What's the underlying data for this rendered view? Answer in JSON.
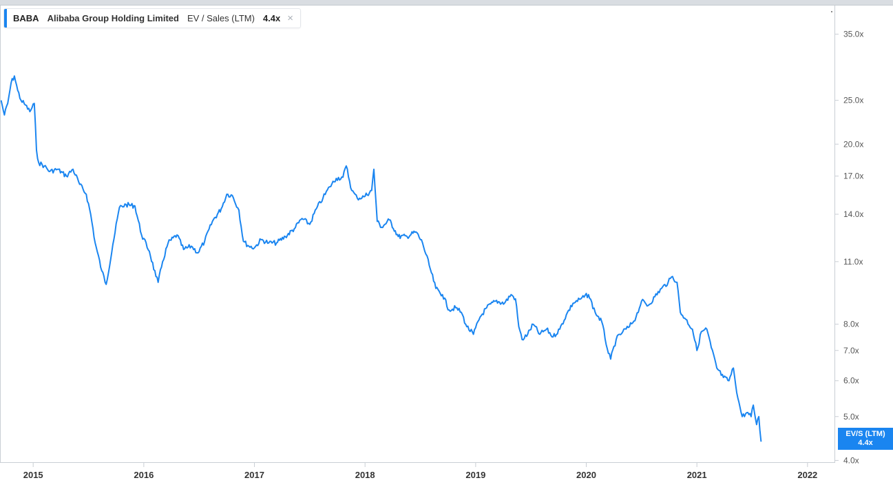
{
  "legend": {
    "ticker": "BABA",
    "company": "Alibaba Group Holding Limited",
    "metric": "EV / Sales (LTM)",
    "last_value": "4.4x",
    "close_icon": "×"
  },
  "value_box": {
    "label": "EV/S (LTM)",
    "value": "4.4x"
  },
  "colors": {
    "series": "#1a85f0",
    "axis": "#c9ced4"
  },
  "chart_data": {
    "type": "line",
    "title": "",
    "xlabel": "",
    "ylabel": "",
    "y_scale": "log",
    "ylim": [
      3.95,
      40.5
    ],
    "x_range": [
      2014.7,
      2022.25
    ],
    "y_ticks": [
      {
        "value": 35,
        "label": "35.0x"
      },
      {
        "value": 25,
        "label": "25.0x"
      },
      {
        "value": 20,
        "label": "20.0x"
      },
      {
        "value": 17,
        "label": "17.0x"
      },
      {
        "value": 14,
        "label": "14.0x"
      },
      {
        "value": 11,
        "label": "11.0x"
      },
      {
        "value": 8,
        "label": "8.0x"
      },
      {
        "value": 7,
        "label": "7.0x"
      },
      {
        "value": 6,
        "label": "6.0x"
      },
      {
        "value": 5,
        "label": "5.0x"
      },
      {
        "value": 4,
        "label": "4.0x"
      }
    ],
    "x_ticks": [
      {
        "value": 2015,
        "label": "2015"
      },
      {
        "value": 2016,
        "label": "2016"
      },
      {
        "value": 2017,
        "label": "2017"
      },
      {
        "value": 2018,
        "label": "2018"
      },
      {
        "value": 2019,
        "label": "2019"
      },
      {
        "value": 2020,
        "label": "2020"
      },
      {
        "value": 2021,
        "label": "2021"
      },
      {
        "value": 2022,
        "label": "2022"
      }
    ],
    "grid": false,
    "legend_position": "top-left",
    "series": [
      {
        "name": "EV / Sales (LTM)",
        "points": [
          [
            2014.71,
            25.0
          ],
          [
            2014.74,
            23.2
          ],
          [
            2014.77,
            24.6
          ],
          [
            2014.8,
            27.3
          ],
          [
            2014.83,
            28.3
          ],
          [
            2014.86,
            26.3
          ],
          [
            2014.89,
            25.0
          ],
          [
            2014.93,
            24.4
          ],
          [
            2014.97,
            23.6
          ],
          [
            2015.01,
            24.6
          ],
          [
            2015.03,
            19.4
          ],
          [
            2015.05,
            18.2
          ],
          [
            2015.1,
            17.9
          ],
          [
            2015.15,
            17.4
          ],
          [
            2015.22,
            17.6
          ],
          [
            2015.3,
            17.0
          ],
          [
            2015.36,
            17.6
          ],
          [
            2015.42,
            16.3
          ],
          [
            2015.48,
            15.5
          ],
          [
            2015.52,
            14.0
          ],
          [
            2015.56,
            12.1
          ],
          [
            2015.62,
            10.5
          ],
          [
            2015.66,
            9.8
          ],
          [
            2015.72,
            12.0
          ],
          [
            2015.78,
            14.5
          ],
          [
            2015.84,
            14.7
          ],
          [
            2015.92,
            14.6
          ],
          [
            2015.98,
            12.6
          ],
          [
            2016.05,
            11.6
          ],
          [
            2016.11,
            10.2
          ],
          [
            2016.13,
            9.9
          ],
          [
            2016.17,
            11.0
          ],
          [
            2016.22,
            12.1
          ],
          [
            2016.3,
            12.6
          ],
          [
            2016.36,
            11.7
          ],
          [
            2016.43,
            11.9
          ],
          [
            2016.49,
            11.5
          ],
          [
            2016.55,
            12.2
          ],
          [
            2016.62,
            13.5
          ],
          [
            2016.7,
            14.4
          ],
          [
            2016.75,
            15.5
          ],
          [
            2016.8,
            15.4
          ],
          [
            2016.86,
            14.3
          ],
          [
            2016.9,
            12.2
          ],
          [
            2016.95,
            11.9
          ],
          [
            2017.0,
            11.8
          ],
          [
            2017.06,
            12.3
          ],
          [
            2017.13,
            12.1
          ],
          [
            2017.2,
            12.1
          ],
          [
            2017.28,
            12.5
          ],
          [
            2017.36,
            13.0
          ],
          [
            2017.43,
            13.7
          ],
          [
            2017.5,
            13.3
          ],
          [
            2017.56,
            14.4
          ],
          [
            2017.62,
            15.2
          ],
          [
            2017.68,
            16.1
          ],
          [
            2017.74,
            16.8
          ],
          [
            2017.8,
            16.9
          ],
          [
            2017.83,
            17.9
          ],
          [
            2017.88,
            15.8
          ],
          [
            2017.93,
            15.2
          ],
          [
            2017.99,
            15.3
          ],
          [
            2018.06,
            15.8
          ],
          [
            2018.08,
            17.6
          ],
          [
            2018.11,
            13.5
          ],
          [
            2018.15,
            13.1
          ],
          [
            2018.22,
            13.6
          ],
          [
            2018.3,
            12.5
          ],
          [
            2018.38,
            12.5
          ],
          [
            2018.46,
            12.8
          ],
          [
            2018.52,
            12.1
          ],
          [
            2018.58,
            10.8
          ],
          [
            2018.64,
            9.6
          ],
          [
            2018.7,
            9.3
          ],
          [
            2018.76,
            8.6
          ],
          [
            2018.82,
            8.7
          ],
          [
            2018.87,
            8.5
          ],
          [
            2018.92,
            7.9
          ],
          [
            2018.98,
            7.6
          ],
          [
            2019.04,
            8.3
          ],
          [
            2019.1,
            8.7
          ],
          [
            2019.18,
            9.0
          ],
          [
            2019.26,
            8.9
          ],
          [
            2019.32,
            9.3
          ],
          [
            2019.36,
            9.1
          ],
          [
            2019.39,
            7.9
          ],
          [
            2019.42,
            7.4
          ],
          [
            2019.47,
            7.6
          ],
          [
            2019.52,
            8.0
          ],
          [
            2019.58,
            7.6
          ],
          [
            2019.64,
            7.8
          ],
          [
            2019.7,
            7.5
          ],
          [
            2019.76,
            7.8
          ],
          [
            2019.82,
            8.4
          ],
          [
            2019.88,
            8.9
          ],
          [
            2019.95,
            9.1
          ],
          [
            2020.02,
            9.3
          ],
          [
            2020.08,
            8.5
          ],
          [
            2020.14,
            8.1
          ],
          [
            2020.2,
            6.9
          ],
          [
            2020.22,
            6.7
          ],
          [
            2020.27,
            7.4
          ],
          [
            2020.33,
            7.7
          ],
          [
            2020.39,
            7.9
          ],
          [
            2020.45,
            8.3
          ],
          [
            2020.5,
            9.0
          ],
          [
            2020.56,
            8.8
          ],
          [
            2020.62,
            9.2
          ],
          [
            2020.68,
            9.6
          ],
          [
            2020.74,
            9.9
          ],
          [
            2020.78,
            10.2
          ],
          [
            2020.82,
            9.9
          ],
          [
            2020.85,
            8.5
          ],
          [
            2020.9,
            8.2
          ],
          [
            2020.96,
            7.8
          ],
          [
            2021.0,
            7.0
          ],
          [
            2021.04,
            7.7
          ],
          [
            2021.09,
            7.8
          ],
          [
            2021.13,
            7.1
          ],
          [
            2021.18,
            6.4
          ],
          [
            2021.24,
            6.1
          ],
          [
            2021.29,
            6.0
          ],
          [
            2021.33,
            6.4
          ],
          [
            2021.37,
            5.5
          ],
          [
            2021.41,
            5.0
          ],
          [
            2021.45,
            5.1
          ],
          [
            2021.49,
            5.0
          ],
          [
            2021.51,
            5.3
          ],
          [
            2021.54,
            4.8
          ],
          [
            2021.56,
            5.0
          ],
          [
            2021.58,
            4.4
          ]
        ]
      }
    ]
  }
}
